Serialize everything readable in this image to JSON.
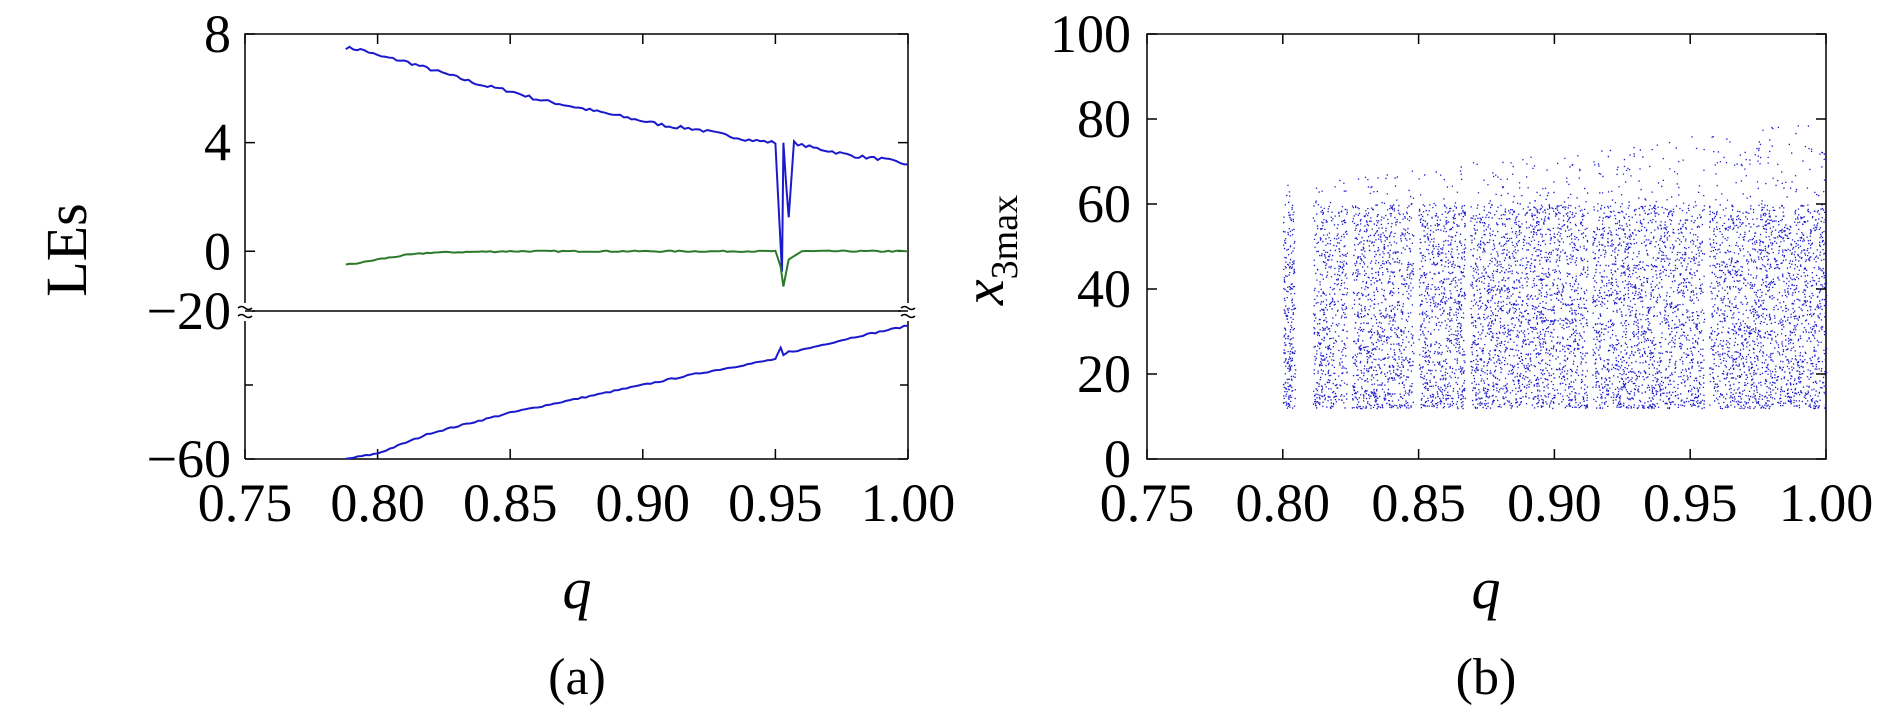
{
  "chart_data": [
    {
      "panel": "(a)",
      "type": "line",
      "xlabel": "q",
      "ylabel": "LEs",
      "xlim": [
        0.75,
        1.0
      ],
      "x_ticks": [
        "0.75",
        "0.80",
        "0.85",
        "0.90",
        "0.95",
        "1.00"
      ],
      "y_ticks_upper": [
        "8",
        "4",
        "0"
      ],
      "y_ticks_lower": [
        "−20",
        "−60"
      ],
      "broken_axis": true,
      "ylim_upper": [
        -2.2,
        8
      ],
      "ylim_lower": [
        -60,
        -20
      ],
      "series": [
        {
          "color": "#1a1acc",
          "segment": "upper",
          "x": [
            0.788,
            0.795,
            0.8,
            0.81,
            0.82,
            0.83,
            0.84,
            0.85,
            0.86,
            0.87,
            0.88,
            0.89,
            0.9,
            0.91,
            0.92,
            0.93,
            0.94,
            0.95,
            0.9525,
            0.953,
            0.955,
            0.957,
            0.96,
            0.97,
            0.98,
            0.99,
            1.0
          ],
          "values": [
            7.5,
            7.4,
            7.2,
            7.0,
            6.7,
            6.4,
            6.1,
            5.9,
            5.6,
            5.4,
            5.2,
            5.0,
            4.8,
            4.6,
            4.5,
            4.3,
            4.1,
            4.0,
            -0.8,
            4.0,
            1.2,
            4.0,
            3.9,
            3.7,
            3.5,
            3.4,
            3.2
          ]
        },
        {
          "color": "#2a7a2a",
          "segment": "upper",
          "x": [
            0.788,
            0.795,
            0.8,
            0.81,
            0.82,
            0.85,
            0.9,
            0.95,
            0.952,
            0.953,
            0.955,
            0.96,
            1.0
          ],
          "values": [
            -0.5,
            -0.4,
            -0.3,
            -0.15,
            -0.05,
            0.0,
            0.0,
            0.0,
            -0.6,
            -1.3,
            -0.3,
            0.0,
            0.0
          ]
        },
        {
          "color": "#1a1acc",
          "segment": "lower",
          "x": [
            0.788,
            0.8,
            0.82,
            0.85,
            0.88,
            0.9,
            0.92,
            0.95,
            0.952,
            0.953,
            0.955,
            0.96,
            0.98,
            1.0
          ],
          "values": [
            -60,
            -58.5,
            -53,
            -47.5,
            -43,
            -40,
            -37,
            -33,
            -30,
            -32,
            -31,
            -30.5,
            -27,
            -24
          ]
        }
      ]
    },
    {
      "panel": "(b)",
      "type": "scatter",
      "xlabel": "q",
      "ylabel": "x",
      "ylabel_subscript": "3max",
      "xlim": [
        0.75,
        1.0
      ],
      "ylim": [
        0,
        100
      ],
      "x_ticks": [
        "0.75",
        "0.80",
        "0.85",
        "0.90",
        "0.95",
        "1.00"
      ],
      "y_ticks": [
        "0",
        "20",
        "40",
        "60",
        "80",
        "100"
      ],
      "series": [
        {
          "color": "#1a1acc",
          "point_count": 9000,
          "x_range": [
            0.8,
            1.0
          ],
          "y_range": [
            12,
            90
          ],
          "dense_y_range": [
            12,
            60
          ],
          "gap_q": [
            0.806,
            0.8095,
            0.8245,
            0.849,
            0.868,
            0.913,
            0.956
          ]
        }
      ]
    }
  ],
  "panel_labels": {
    "a": "(a)",
    "b": "(b)"
  }
}
